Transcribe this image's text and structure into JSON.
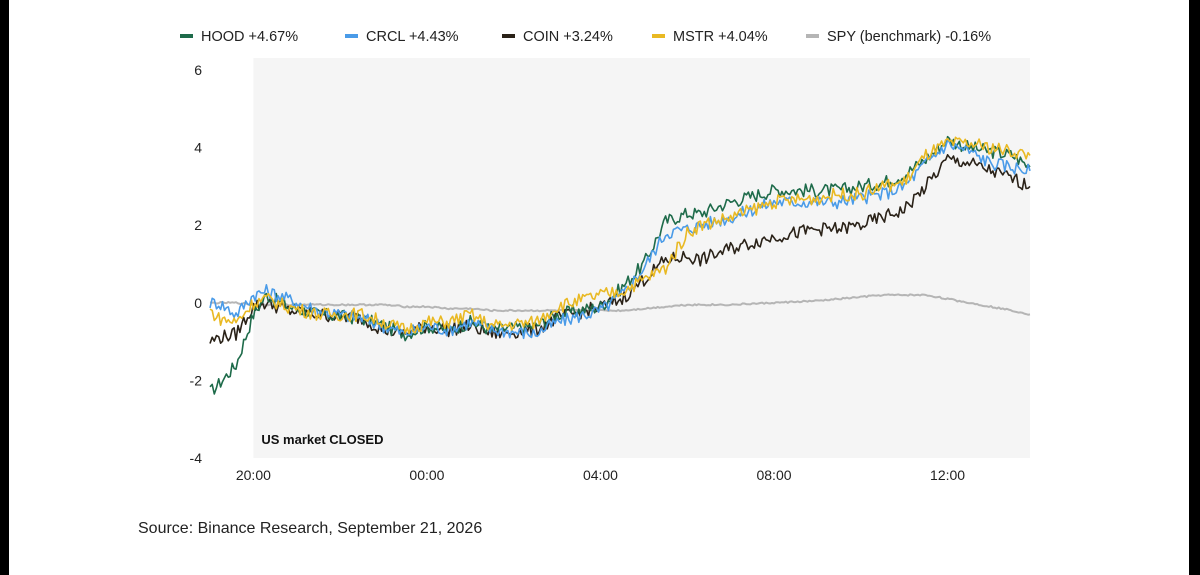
{
  "chart_data": {
    "type": "line",
    "ylim": [
      -4,
      6
    ],
    "y_ticks": [
      "6",
      "4",
      "2",
      "0",
      "-2",
      "-4"
    ],
    "y_tick_values": [
      6,
      4,
      2,
      0,
      -2,
      -4
    ],
    "x_ticks": [
      "20:00",
      "00:00",
      "04:00",
      "08:00",
      "12:00"
    ],
    "x_tick_hours": [
      0,
      4,
      8,
      12,
      16
    ],
    "x_range_hours": [
      -1.0,
      17.9
    ],
    "closed_region": {
      "from_hour": 0.0,
      "to_hour": 17.9,
      "label": "US market CLOSED"
    },
    "grid": false,
    "legend_position": "top",
    "x_hours": [
      -1.0,
      -0.8,
      -0.4,
      0.0,
      0.3,
      0.8,
      1.5,
      2.5,
      3.0,
      3.5,
      4.0,
      4.5,
      5.0,
      5.5,
      6.5,
      7.0,
      8.0,
      8.5,
      9.0,
      9.5,
      10.0,
      10.3,
      11.0,
      12.0,
      13.0,
      13.5,
      14.0,
      14.5,
      15.0,
      15.5,
      16.0,
      16.5,
      17.0,
      17.5,
      17.9
    ],
    "series": [
      {
        "name": "HOOD +4.67%",
        "color": "#1e6b4a",
        "values": [
          -2.3,
          -2.1,
          -1.6,
          -0.3,
          0.2,
          -0.1,
          -0.3,
          -0.4,
          -0.6,
          -0.8,
          -0.6,
          -0.7,
          -0.5,
          -0.7,
          -0.6,
          -0.3,
          -0.1,
          0.4,
          1.0,
          2.1,
          2.3,
          2.3,
          2.6,
          2.9,
          2.9,
          2.9,
          3.0,
          3.1,
          3.3,
          3.7,
          4.2,
          4.0,
          3.9,
          3.8,
          3.5
        ]
      },
      {
        "name": "CRCL +4.43%",
        "color": "#4a9be8",
        "values": [
          0.0,
          0.0,
          -0.3,
          0.2,
          0.3,
          0.1,
          -0.2,
          -0.4,
          -0.6,
          -0.8,
          -0.6,
          -0.7,
          -0.5,
          -0.7,
          -0.8,
          -0.5,
          -0.2,
          0.2,
          0.9,
          1.8,
          1.9,
          2.0,
          2.2,
          2.6,
          2.6,
          2.6,
          2.7,
          2.8,
          3.0,
          3.6,
          4.1,
          3.9,
          3.6,
          3.5,
          3.4
        ]
      },
      {
        "name": "COIN +3.24%",
        "color": "#2a2218",
        "values": [
          -1.0,
          -0.9,
          -0.8,
          -0.1,
          0.0,
          -0.2,
          -0.3,
          -0.4,
          -0.7,
          -0.8,
          -0.6,
          -0.7,
          -0.6,
          -0.8,
          -0.7,
          -0.4,
          -0.1,
          0.1,
          0.6,
          1.1,
          1.2,
          1.1,
          1.4,
          1.7,
          1.9,
          1.9,
          2.0,
          2.2,
          2.4,
          3.0,
          3.7,
          3.6,
          3.4,
          3.2,
          3.0
        ]
      },
      {
        "name": "MSTR +4.04%",
        "color": "#e9b923",
        "values": [
          -0.2,
          -0.4,
          -0.5,
          0.0,
          0.1,
          -0.1,
          -0.3,
          -0.3,
          -0.5,
          -0.7,
          -0.5,
          -0.5,
          -0.3,
          -0.6,
          -0.5,
          -0.1,
          0.2,
          0.3,
          0.6,
          0.9,
          1.8,
          2.0,
          2.2,
          2.6,
          2.7,
          2.8,
          2.8,
          3.0,
          3.1,
          3.8,
          4.1,
          4.1,
          4.0,
          3.9,
          3.8
        ]
      },
      {
        "name": "SPY (benchmark) -0.16%",
        "color": "#b5b5b5",
        "values": [
          0.0,
          0.0,
          0.0,
          -0.05,
          -0.05,
          -0.05,
          -0.05,
          -0.05,
          -0.05,
          -0.1,
          -0.1,
          -0.15,
          -0.15,
          -0.2,
          -0.2,
          -0.2,
          -0.2,
          -0.2,
          -0.15,
          -0.1,
          -0.05,
          -0.05,
          -0.05,
          0.0,
          0.05,
          0.1,
          0.15,
          0.2,
          0.2,
          0.2,
          0.1,
          0.0,
          -0.1,
          -0.2,
          -0.3
        ]
      }
    ]
  },
  "source": "Source: Binance Research, September 21, 2026"
}
